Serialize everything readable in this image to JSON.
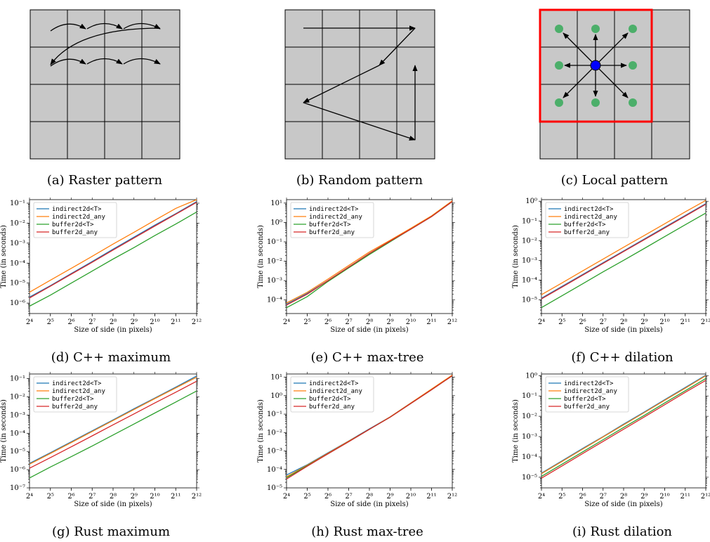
{
  "captions": {
    "a": "(a) Raster pattern",
    "b": "(b) Random pattern",
    "c": "(c) Local pattern",
    "d": "(d) C++ maximum",
    "e": "(e) C++ max-tree",
    "f": "(f) C++ dilation",
    "g": "(g) Rust maximum",
    "h": "(h) Rust max-tree",
    "i": "(i) Rust dilation"
  },
  "diagram_colors": {
    "cell_fill": "#c8c8c8",
    "grid_line": "#000000",
    "window": "#ff0000",
    "neighbor": "#4caf6a",
    "center": "#0000ff"
  },
  "chart_data": [
    {
      "id": "d",
      "type": "line",
      "title": "",
      "xlabel": "Size of side (in pixels)",
      "ylabel": "Time (in seconds)",
      "x_scale": "log2",
      "y_scale": "log10",
      "x": [
        16,
        32,
        64,
        128,
        256,
        512,
        1024,
        2048,
        4096
      ],
      "xlim": [
        16,
        4096
      ],
      "ylim": [
        3e-07,
        0.15
      ],
      "legend_position": "upper-left",
      "series": [
        {
          "name": "indirect2d<T>",
          "color": "#1f77b4",
          "values": [
            2e-06,
            7.5e-06,
            3e-05,
            0.00012,
            0.0005,
            0.002,
            0.008,
            0.03,
            0.12
          ]
        },
        {
          "name": "indirect2d_any",
          "color": "#ff7f0e",
          "values": [
            3.5e-06,
            1.4e-05,
            5.5e-05,
            0.00022,
            0.0009,
            0.0035,
            0.014,
            0.055,
            0.15
          ]
        },
        {
          "name": "buffer2d<T>",
          "color": "#2ca02c",
          "values": [
            7e-07,
            2.5e-06,
            1e-05,
            4e-05,
            0.00016,
            0.0006,
            0.0024,
            0.009,
            0.036
          ]
        },
        {
          "name": "buffer2d_any",
          "color": "#d62728",
          "values": [
            1.8e-06,
            7e-06,
            2.8e-05,
            0.00011,
            0.00045,
            0.0018,
            0.0072,
            0.028,
            0.11
          ]
        }
      ]
    },
    {
      "id": "e",
      "type": "line",
      "title": "",
      "xlabel": "Size of side (in pixels)",
      "ylabel": "Time (in seconds)",
      "x_scale": "log2",
      "y_scale": "log10",
      "x": [
        16,
        32,
        64,
        128,
        256,
        512,
        1024,
        2048,
        4096
      ],
      "xlim": [
        16,
        4096
      ],
      "ylim": [
        2e-05,
        15
      ],
      "legend_position": "upper-left",
      "series": [
        {
          "name": "indirect2d<T>",
          "color": "#1f77b4",
          "values": [
            6e-05,
            0.00022,
            0.001,
            0.005,
            0.025,
            0.11,
            0.45,
            2.0,
            12
          ]
        },
        {
          "name": "indirect2d_any",
          "color": "#ff7f0e",
          "values": [
            7e-05,
            0.00025,
            0.0012,
            0.006,
            0.03,
            0.12,
            0.5,
            2.2,
            13
          ]
        },
        {
          "name": "buffer2d<T>",
          "color": "#2ca02c",
          "values": [
            4e-05,
            0.00015,
            0.0009,
            0.0045,
            0.022,
            0.1,
            0.45,
            2.0,
            12
          ]
        },
        {
          "name": "buffer2d_any",
          "color": "#d62728",
          "values": [
            5.5e-05,
            0.0002,
            0.001,
            0.005,
            0.025,
            0.11,
            0.45,
            2.0,
            12
          ]
        }
      ]
    },
    {
      "id": "f",
      "type": "line",
      "title": "",
      "xlabel": "Size of side (in pixels)",
      "ylabel": "Time (in seconds)",
      "x_scale": "log2",
      "y_scale": "log10",
      "x": [
        16,
        32,
        64,
        128,
        256,
        512,
        1024,
        2048,
        4096
      ],
      "xlim": [
        16,
        4096
      ],
      "ylim": [
        2e-06,
        1.2
      ],
      "legend_position": "upper-left",
      "series": [
        {
          "name": "indirect2d<T>",
          "color": "#1f77b4",
          "values": [
            1.2e-05,
            4.8e-05,
            0.00019,
            0.00076,
            0.003,
            0.012,
            0.048,
            0.19,
            0.75
          ]
        },
        {
          "name": "indirect2d_any",
          "color": "#ff7f0e",
          "values": [
            1.8e-05,
            7.2e-05,
            0.00029,
            0.00115,
            0.0046,
            0.018,
            0.072,
            0.29,
            1.1
          ]
        },
        {
          "name": "buffer2d<T>",
          "color": "#2ca02c",
          "values": [
            4e-06,
            1.6e-05,
            6.4e-05,
            0.00026,
            0.001,
            0.004,
            0.016,
            0.064,
            0.25
          ]
        },
        {
          "name": "buffer2d_any",
          "color": "#d62728",
          "values": [
            1.1e-05,
            4.4e-05,
            0.000175,
            0.0007,
            0.0028,
            0.011,
            0.044,
            0.175,
            0.7
          ]
        }
      ]
    },
    {
      "id": "g",
      "type": "line",
      "title": "",
      "xlabel": "Size of side (in pixels)",
      "ylabel": "Time (in seconds)",
      "x_scale": "log2",
      "y_scale": "log10",
      "x": [
        16,
        32,
        64,
        128,
        256,
        512,
        1024,
        2048,
        4096
      ],
      "xlim": [
        16,
        4096
      ],
      "ylim": [
        1e-07,
        0.18
      ],
      "legend_position": "upper-left",
      "series": [
        {
          "name": "indirect2d<T>",
          "color": "#1f77b4",
          "values": [
            2.2e-06,
            8.5e-06,
            3.4e-05,
            0.000136,
            0.00054,
            0.0022,
            0.0086,
            0.034,
            0.14
          ]
        },
        {
          "name": "indirect2d_any",
          "color": "#ff7f0e",
          "values": [
            2e-06,
            7.8e-06,
            3.1e-05,
            0.000125,
            0.0005,
            0.002,
            0.008,
            0.031,
            0.12
          ]
        },
        {
          "name": "buffer2d<T>",
          "color": "#2ca02c",
          "values": [
            3.5e-07,
            1.4e-06,
            5.2e-06,
            2e-05,
            8e-05,
            0.00032,
            0.0013,
            0.0052,
            0.021
          ]
        },
        {
          "name": "buffer2d_any",
          "color": "#d62728",
          "values": [
            1.2e-06,
            4.6e-06,
            1.8e-05,
            7.2e-05,
            0.00029,
            0.00115,
            0.0046,
            0.018,
            0.072
          ]
        }
      ]
    },
    {
      "id": "h",
      "type": "line",
      "title": "",
      "xlabel": "Size of side (in pixels)",
      "ylabel": "Time (in seconds)",
      "x_scale": "log2",
      "y_scale": "log10",
      "x": [
        16,
        32,
        64,
        128,
        256,
        512,
        1024,
        2048,
        4096
      ],
      "xlim": [
        16,
        4096
      ],
      "ylim": [
        1e-05,
        15
      ],
      "legend_position": "upper-left",
      "series": [
        {
          "name": "indirect2d<T>",
          "color": "#1f77b4",
          "values": [
            5e-05,
            0.00018,
            0.0008,
            0.0035,
            0.016,
            0.07,
            0.4,
            2.2,
            12
          ]
        },
        {
          "name": "indirect2d_any",
          "color": "#ff7f0e",
          "values": [
            4e-05,
            0.00017,
            0.00075,
            0.0034,
            0.015,
            0.07,
            0.4,
            2.3,
            13
          ]
        },
        {
          "name": "buffer2d<T>",
          "color": "#2ca02c",
          "values": [
            3.5e-05,
            0.00016,
            0.0007,
            0.0032,
            0.015,
            0.068,
            0.38,
            2.1,
            12
          ]
        },
        {
          "name": "buffer2d_any",
          "color": "#d62728",
          "values": [
            3e-05,
            0.00015,
            0.0007,
            0.0032,
            0.015,
            0.068,
            0.38,
            2.1,
            12
          ]
        }
      ]
    },
    {
      "id": "i",
      "type": "line",
      "title": "",
      "xlabel": "Size of side (in pixels)",
      "ylabel": "Time (in seconds)",
      "x_scale": "log2",
      "y_scale": "log10",
      "x": [
        16,
        32,
        64,
        128,
        256,
        512,
        1024,
        2048,
        4096
      ],
      "xlim": [
        16,
        4096
      ],
      "ylim": [
        3e-06,
        1.2
      ],
      "legend_position": "upper-left",
      "series": [
        {
          "name": "indirect2d<T>",
          "color": "#1f77b4",
          "values": [
            1.6e-05,
            6.4e-05,
            0.00026,
            0.001,
            0.0041,
            0.016,
            0.065,
            0.26,
            1.05
          ]
        },
        {
          "name": "indirect2d_any",
          "color": "#ff7f0e",
          "values": [
            1.5e-05,
            6e-05,
            0.00024,
            0.00096,
            0.0038,
            0.015,
            0.061,
            0.24,
            0.98
          ]
        },
        {
          "name": "buffer2d<T>",
          "color": "#2ca02c",
          "values": [
            1.1e-05,
            4.4e-05,
            0.000175,
            0.0007,
            0.0028,
            0.011,
            0.045,
            0.18,
            0.72
          ]
        },
        {
          "name": "buffer2d_any",
          "color": "#d62728",
          "values": [
            9e-06,
            3.6e-05,
            0.000145,
            0.00058,
            0.0023,
            0.0092,
            0.037,
            0.15,
            0.58
          ]
        }
      ]
    }
  ]
}
